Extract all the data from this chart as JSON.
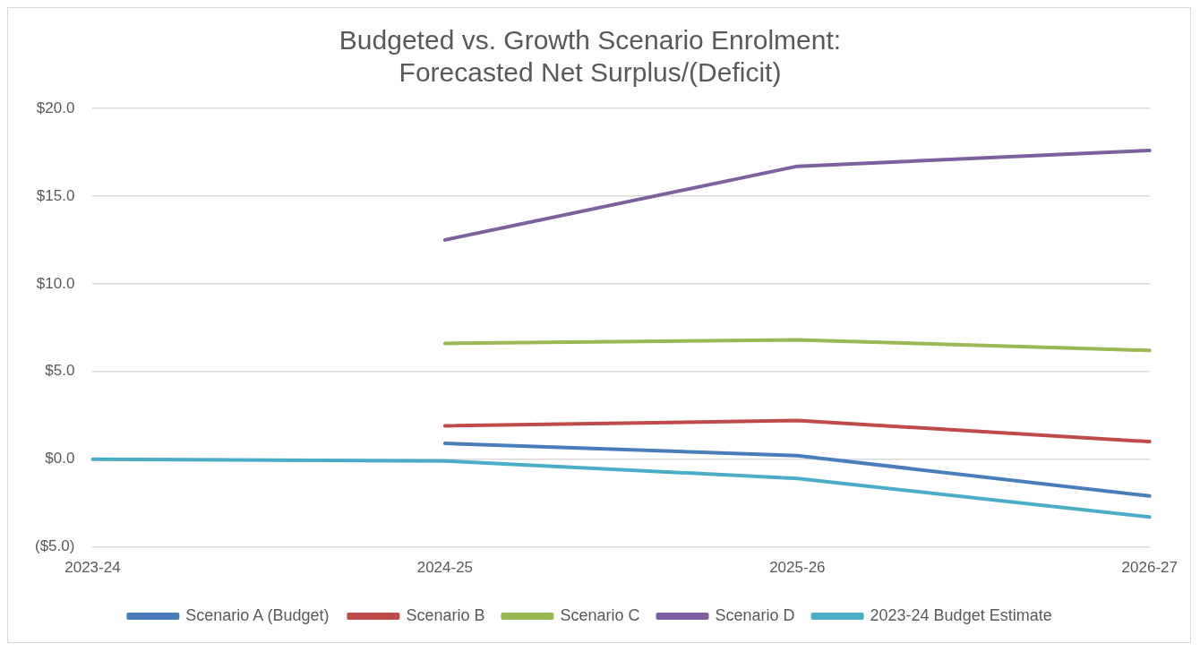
{
  "chart_data": {
    "type": "line",
    "title": "Budgeted vs. Growth Scenario Enrolment:\nForecasted Net Surplus/(Deficit)",
    "categories": [
      "2023-24",
      "2024-25",
      "2025-26",
      "2026-27"
    ],
    "series": [
      {
        "name": "Scenario A (Budget)",
        "color": "#4a7ebb",
        "values": [
          null,
          0.9,
          0.2,
          -2.1
        ]
      },
      {
        "name": "Scenario B",
        "color": "#be4b48",
        "values": [
          null,
          1.9,
          2.2,
          1.0
        ]
      },
      {
        "name": "Scenario C",
        "color": "#98b954",
        "values": [
          null,
          6.6,
          6.8,
          6.2
        ]
      },
      {
        "name": "Scenario D",
        "color": "#7d60a0",
        "values": [
          null,
          12.5,
          16.7,
          17.6
        ]
      },
      {
        "name": "2023-24 Budget Estimate",
        "color": "#4bacc6",
        "values": [
          0,
          -0.1,
          -1.1,
          -3.3
        ]
      }
    ],
    "ylim": [
      -5,
      20
    ],
    "yticks": [
      {
        "value": -5,
        "label": "($5.0)"
      },
      {
        "value": 0,
        "label": "$0.0"
      },
      {
        "value": 5,
        "label": "$5.0"
      },
      {
        "value": 10,
        "label": "$10.0"
      },
      {
        "value": 15,
        "label": "$15.0"
      },
      {
        "value": 20,
        "label": "$20.0"
      }
    ],
    "grid": "y",
    "legend": "bottom",
    "marker": "none",
    "line_style": "solid"
  }
}
